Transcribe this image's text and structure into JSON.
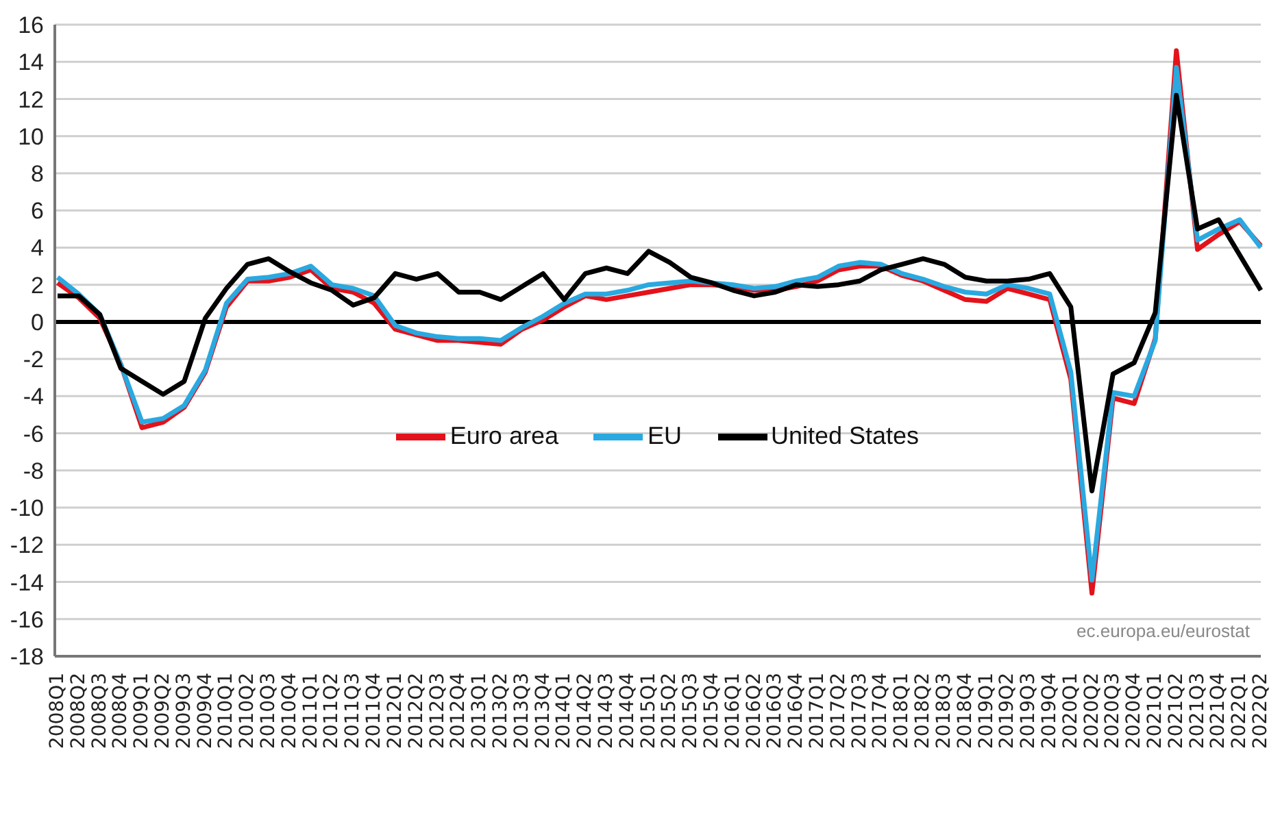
{
  "chart_data": {
    "type": "line",
    "categories": [
      "2008Q1",
      "2008Q2",
      "2008Q3",
      "2008Q4",
      "2009Q1",
      "2009Q2",
      "2009Q3",
      "2009Q4",
      "2010Q1",
      "2010Q2",
      "2010Q3",
      "2010Q4",
      "2011Q1",
      "2011Q2",
      "2011Q3",
      "2011Q4",
      "2012Q1",
      "2012Q2",
      "2012Q3",
      "2012Q4",
      "2013Q1",
      "2013Q2",
      "2013Q3",
      "2013Q4",
      "2014Q1",
      "2014Q2",
      "2014Q3",
      "2014Q4",
      "2015Q1",
      "2015Q2",
      "2015Q3",
      "2015Q4",
      "2016Q1",
      "2016Q2",
      "2016Q3",
      "2016Q4",
      "2017Q1",
      "2017Q2",
      "2017Q3",
      "2017Q4",
      "2018Q1",
      "2018Q2",
      "2018Q3",
      "2018Q4",
      "2019Q1",
      "2019Q2",
      "2019Q3",
      "2019Q4",
      "2020Q1",
      "2020Q2",
      "2020Q3",
      "2020Q4",
      "2021Q1",
      "2021Q2",
      "2021Q3",
      "2021Q4",
      "2022Q1",
      "2022Q2"
    ],
    "series": [
      {
        "name": "Euro area",
        "color": "#e3121b",
        "values": [
          2.1,
          1.3,
          0.2,
          -2.3,
          -5.7,
          -5.4,
          -4.6,
          -2.7,
          0.8,
          2.2,
          2.2,
          2.4,
          2.8,
          1.8,
          1.6,
          1.0,
          -0.4,
          -0.7,
          -1.0,
          -1.0,
          -1.1,
          -1.2,
          -0.4,
          0.1,
          0.8,
          1.4,
          1.2,
          1.4,
          1.6,
          1.8,
          2.0,
          2.0,
          1.9,
          1.7,
          1.7,
          1.9,
          2.2,
          2.8,
          3.0,
          3.0,
          2.5,
          2.2,
          1.7,
          1.2,
          1.1,
          1.8,
          1.5,
          1.2,
          -3.1,
          -14.6,
          -4.1,
          -4.4,
          -0.9,
          14.6,
          3.9,
          4.7,
          5.4,
          4.1
        ]
      },
      {
        "name": "EU",
        "color": "#29a9e0",
        "values": [
          2.4,
          1.5,
          0.4,
          -2.3,
          -5.4,
          -5.2,
          -4.5,
          -2.6,
          1.0,
          2.3,
          2.4,
          2.6,
          3.0,
          2.0,
          1.8,
          1.4,
          -0.2,
          -0.6,
          -0.8,
          -0.9,
          -0.9,
          -1.0,
          -0.3,
          0.3,
          1.0,
          1.5,
          1.5,
          1.7,
          2.0,
          2.1,
          2.2,
          2.1,
          2.0,
          1.8,
          1.9,
          2.2,
          2.4,
          3.0,
          3.2,
          3.1,
          2.6,
          2.3,
          1.9,
          1.6,
          1.5,
          2.0,
          1.8,
          1.5,
          -2.7,
          -13.9,
          -3.8,
          -4.0,
          -1.0,
          13.7,
          4.4,
          5.0,
          5.5,
          4.0
        ]
      },
      {
        "name": "United States",
        "color": "#000000",
        "values": [
          1.4,
          1.4,
          0.4,
          -2.5,
          -3.2,
          -3.9,
          -3.2,
          0.2,
          1.8,
          3.1,
          3.4,
          2.7,
          2.1,
          1.7,
          0.9,
          1.3,
          2.6,
          2.3,
          2.6,
          1.6,
          1.6,
          1.2,
          1.9,
          2.6,
          1.2,
          2.6,
          2.9,
          2.6,
          3.8,
          3.2,
          2.4,
          2.1,
          1.7,
          1.4,
          1.6,
          2.0,
          1.9,
          2.0,
          2.2,
          2.8,
          3.1,
          3.4,
          3.1,
          2.4,
          2.2,
          2.2,
          2.3,
          2.6,
          0.8,
          -9.1,
          -2.8,
          -2.2,
          0.5,
          12.2,
          5.0,
          5.5,
          3.6,
          1.7
        ]
      }
    ],
    "ylim": [
      -18,
      16
    ],
    "yticks": [
      -18,
      -16,
      -14,
      -12,
      -10,
      -8,
      -6,
      -4,
      -2,
      0,
      2,
      4,
      6,
      8,
      10,
      12,
      14,
      16
    ],
    "grid": "y",
    "legend": "center",
    "line_style": "solid",
    "ref_lines": [
      {
        "axis": "y",
        "value": 0,
        "color": "#000000"
      }
    ],
    "annotations": [
      "ec.europa.eu/eurostat"
    ]
  }
}
